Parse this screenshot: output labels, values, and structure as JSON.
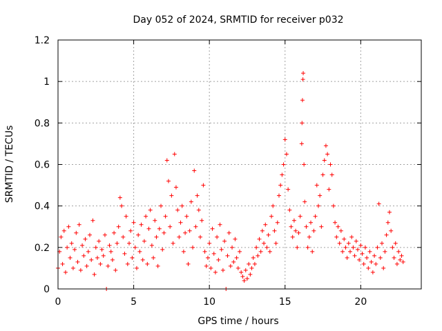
{
  "chart_data": {
    "type": "scatter",
    "title": "Day 052 of 2024, SRMTID for receiver p032",
    "xlabel": "GPS time / hours",
    "ylabel": "SRMTID / TECUs",
    "xlim": [
      0,
      24
    ],
    "ylim": [
      0,
      1.2
    ],
    "xticks": [
      0,
      5,
      10,
      15,
      20
    ],
    "yticks": [
      0,
      0.2,
      0.4,
      0.6,
      0.8,
      1,
      1.2
    ],
    "xtick_labels": [
      "0",
      "5",
      "10",
      "15",
      "20"
    ],
    "ytick_labels": [
      "0",
      "0.2",
      "0.4",
      "0.6",
      "0.8",
      "1",
      "1.2"
    ],
    "grid": true,
    "marker": "+",
    "color": "#ff0000",
    "series": [
      {
        "name": "SRMTID",
        "points": [
          [
            0.0,
            0.1
          ],
          [
            0.1,
            0.18
          ],
          [
            0.2,
            0.25
          ],
          [
            0.3,
            0.12
          ],
          [
            0.4,
            0.28
          ],
          [
            0.5,
            0.08
          ],
          [
            0.6,
            0.2
          ],
          [
            0.7,
            0.3
          ],
          [
            0.8,
            0.15
          ],
          [
            0.9,
            0.22
          ],
          [
            1.0,
            0.1
          ],
          [
            1.1,
            0.19
          ],
          [
            1.2,
            0.27
          ],
          [
            1.3,
            0.13
          ],
          [
            1.4,
            0.31
          ],
          [
            1.5,
            0.09
          ],
          [
            1.6,
            0.21
          ],
          [
            1.7,
            0.16
          ],
          [
            1.8,
            0.24
          ],
          [
            1.9,
            0.11
          ],
          [
            2.0,
            0.18
          ],
          [
            2.1,
            0.26
          ],
          [
            2.2,
            0.14
          ],
          [
            2.3,
            0.33
          ],
          [
            2.4,
            0.07
          ],
          [
            2.5,
            0.2
          ],
          [
            2.6,
            0.15
          ],
          [
            2.7,
            0.23
          ],
          [
            2.8,
            0.12
          ],
          [
            2.9,
            0.19
          ],
          [
            3.0,
            0.16
          ],
          [
            3.1,
            0.26
          ],
          [
            3.2,
            0.0
          ],
          [
            3.3,
            0.11
          ],
          [
            3.4,
            0.21
          ],
          [
            3.5,
            0.18
          ],
          [
            3.6,
            0.14
          ],
          [
            3.7,
            0.27
          ],
          [
            3.8,
            0.09
          ],
          [
            3.9,
            0.22
          ],
          [
            4.0,
            0.3
          ],
          [
            4.1,
            0.44
          ],
          [
            4.2,
            0.4
          ],
          [
            4.3,
            0.25
          ],
          [
            4.4,
            0.17
          ],
          [
            4.5,
            0.35
          ],
          [
            4.6,
            0.12
          ],
          [
            4.7,
            0.22
          ],
          [
            4.8,
            0.28
          ],
          [
            4.9,
            0.15
          ],
          [
            5.0,
            0.32
          ],
          [
            5.1,
            0.2
          ],
          [
            5.2,
            0.1
          ],
          [
            5.3,
            0.26
          ],
          [
            5.4,
            0.18
          ],
          [
            5.5,
            0.31
          ],
          [
            5.6,
            0.14
          ],
          [
            5.7,
            0.23
          ],
          [
            5.8,
            0.35
          ],
          [
            5.9,
            0.12
          ],
          [
            6.0,
            0.29
          ],
          [
            6.1,
            0.38
          ],
          [
            6.2,
            0.21
          ],
          [
            6.3,
            0.15
          ],
          [
            6.4,
            0.33
          ],
          [
            6.5,
            0.25
          ],
          [
            6.6,
            0.11
          ],
          [
            6.7,
            0.29
          ],
          [
            6.8,
            0.4
          ],
          [
            6.9,
            0.19
          ],
          [
            7.0,
            0.27
          ],
          [
            7.1,
            0.35
          ],
          [
            7.2,
            0.62
          ],
          [
            7.3,
            0.52
          ],
          [
            7.4,
            0.3
          ],
          [
            7.5,
            0.45
          ],
          [
            7.6,
            0.22
          ],
          [
            7.7,
            0.65
          ],
          [
            7.8,
            0.49
          ],
          [
            7.9,
            0.38
          ],
          [
            8.0,
            0.25
          ],
          [
            8.1,
            0.32
          ],
          [
            8.2,
            0.4
          ],
          [
            8.3,
            0.18
          ],
          [
            8.4,
            0.27
          ],
          [
            8.5,
            0.35
          ],
          [
            8.6,
            0.12
          ],
          [
            8.7,
            0.28
          ],
          [
            8.8,
            0.42
          ],
          [
            8.9,
            0.2
          ],
          [
            9.0,
            0.57
          ],
          [
            9.1,
            0.3
          ],
          [
            9.2,
            0.45
          ],
          [
            9.3,
            0.38
          ],
          [
            9.4,
            0.25
          ],
          [
            9.5,
            0.33
          ],
          [
            9.6,
            0.5
          ],
          [
            9.7,
            0.18
          ],
          [
            9.8,
            0.11
          ],
          [
            9.9,
            0.15
          ],
          [
            10.0,
            0.22
          ],
          [
            10.1,
            0.1
          ],
          [
            10.2,
            0.29
          ],
          [
            10.3,
            0.17
          ],
          [
            10.4,
            0.08
          ],
          [
            10.5,
            0.25
          ],
          [
            10.6,
            0.14
          ],
          [
            10.7,
            0.31
          ],
          [
            10.8,
            0.19
          ],
          [
            10.9,
            0.09
          ],
          [
            11.0,
            0.23
          ],
          [
            11.1,
            0.0
          ],
          [
            11.2,
            0.16
          ],
          [
            11.3,
            0.27
          ],
          [
            11.4,
            0.11
          ],
          [
            11.5,
            0.2
          ],
          [
            11.6,
            0.13
          ],
          [
            11.7,
            0.24
          ],
          [
            11.8,
            0.15
          ],
          [
            11.9,
            0.1
          ],
          [
            12.0,
            0.18
          ],
          [
            12.1,
            0.08
          ],
          [
            12.2,
            0.06
          ],
          [
            12.3,
            0.04
          ],
          [
            12.4,
            0.09
          ],
          [
            12.5,
            0.05
          ],
          [
            12.6,
            0.12
          ],
          [
            12.7,
            0.07
          ],
          [
            12.8,
            0.1
          ],
          [
            12.9,
            0.15
          ],
          [
            13.0,
            0.12
          ],
          [
            13.1,
            0.2
          ],
          [
            13.2,
            0.16
          ],
          [
            13.3,
            0.24
          ],
          [
            13.4,
            0.18
          ],
          [
            13.5,
            0.28
          ],
          [
            13.6,
            0.22
          ],
          [
            13.7,
            0.31
          ],
          [
            13.8,
            0.2
          ],
          [
            13.9,
            0.26
          ],
          [
            14.0,
            0.18
          ],
          [
            14.1,
            0.35
          ],
          [
            14.2,
            0.4
          ],
          [
            14.3,
            0.28
          ],
          [
            14.4,
            0.22
          ],
          [
            14.5,
            0.32
          ],
          [
            14.6,
            0.45
          ],
          [
            14.7,
            0.5
          ],
          [
            14.8,
            0.55
          ],
          [
            14.9,
            0.6
          ],
          [
            15.0,
            0.72
          ],
          [
            15.1,
            0.65
          ],
          [
            15.2,
            0.48
          ],
          [
            15.3,
            0.38
          ],
          [
            15.4,
            0.3
          ],
          [
            15.5,
            0.25
          ],
          [
            15.6,
            0.33
          ],
          [
            15.7,
            0.28
          ],
          [
            15.8,
            0.2
          ],
          [
            15.9,
            0.27
          ],
          [
            16.0,
            0.35
          ],
          [
            16.1,
            0.7
          ],
          [
            16.12,
            0.8
          ],
          [
            16.15,
            0.91
          ],
          [
            16.18,
            1.01
          ],
          [
            16.2,
            1.04
          ],
          [
            16.25,
            0.6
          ],
          [
            16.3,
            0.42
          ],
          [
            16.4,
            0.3
          ],
          [
            16.5,
            0.2
          ],
          [
            16.6,
            0.25
          ],
          [
            16.7,
            0.32
          ],
          [
            16.8,
            0.18
          ],
          [
            16.9,
            0.28
          ],
          [
            17.0,
            0.35
          ],
          [
            17.1,
            0.5
          ],
          [
            17.2,
            0.4
          ],
          [
            17.3,
            0.45
          ],
          [
            17.4,
            0.3
          ],
          [
            17.5,
            0.55
          ],
          [
            17.6,
            0.62
          ],
          [
            17.7,
            0.69
          ],
          [
            17.8,
            0.65
          ],
          [
            17.9,
            0.48
          ],
          [
            18.0,
            0.6
          ],
          [
            18.1,
            0.55
          ],
          [
            18.2,
            0.4
          ],
          [
            18.3,
            0.32
          ],
          [
            18.4,
            0.25
          ],
          [
            18.5,
            0.3
          ],
          [
            18.6,
            0.22
          ],
          [
            18.7,
            0.28
          ],
          [
            18.8,
            0.18
          ],
          [
            18.9,
            0.24
          ],
          [
            19.0,
            0.2
          ],
          [
            19.1,
            0.15
          ],
          [
            19.2,
            0.22
          ],
          [
            19.3,
            0.18
          ],
          [
            19.4,
            0.25
          ],
          [
            19.5,
            0.2
          ],
          [
            19.6,
            0.16
          ],
          [
            19.7,
            0.23
          ],
          [
            19.8,
            0.19
          ],
          [
            19.9,
            0.14
          ],
          [
            20.0,
            0.21
          ],
          [
            20.1,
            0.17
          ],
          [
            20.2,
            0.12
          ],
          [
            20.3,
            0.2
          ],
          [
            20.4,
            0.15
          ],
          [
            20.5,
            0.1
          ],
          [
            20.6,
            0.18
          ],
          [
            20.7,
            0.13
          ],
          [
            20.8,
            0.08
          ],
          [
            20.9,
            0.16
          ],
          [
            21.0,
            0.12
          ],
          [
            21.1,
            0.2
          ],
          [
            21.2,
            0.41
          ],
          [
            21.3,
            0.15
          ],
          [
            21.4,
            0.22
          ],
          [
            21.5,
            0.1
          ],
          [
            21.6,
            0.18
          ],
          [
            21.7,
            0.26
          ],
          [
            21.8,
            0.32
          ],
          [
            21.9,
            0.37
          ],
          [
            22.0,
            0.28
          ],
          [
            22.1,
            0.2
          ],
          [
            22.2,
            0.15
          ],
          [
            22.3,
            0.22
          ],
          [
            22.4,
            0.12
          ],
          [
            22.5,
            0.18
          ],
          [
            22.6,
            0.14
          ],
          [
            22.7,
            0.16
          ],
          [
            22.8,
            0.13
          ]
        ]
      }
    ]
  }
}
